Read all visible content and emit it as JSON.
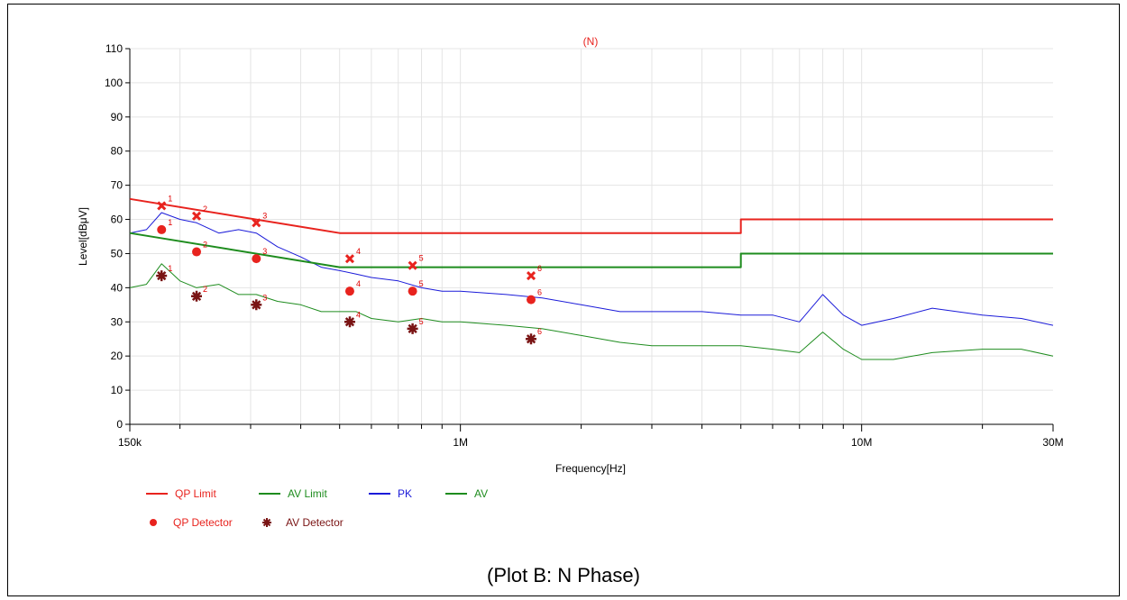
{
  "caption": "(Plot B: N Phase)",
  "chart_data": {
    "type": "line",
    "title": "(N)",
    "xlabel": "Frequency[Hz]",
    "ylabel": "Level[dBμV]",
    "x_scale": "log",
    "xlim": [
      150000,
      30000000
    ],
    "ylim": [
      0,
      110
    ],
    "grid": true,
    "y_ticks": [
      0,
      10,
      20,
      30,
      40,
      50,
      60,
      70,
      80,
      90,
      100,
      110
    ],
    "x_tick_labels": [
      {
        "value": 150000,
        "label": "150k"
      },
      {
        "value": 1000000,
        "label": "1M"
      },
      {
        "value": 10000000,
        "label": "10M"
      },
      {
        "value": 30000000,
        "label": "30M"
      }
    ],
    "x_minor_ticks": [
      200000,
      300000,
      400000,
      500000,
      600000,
      700000,
      800000,
      900000,
      2000000,
      3000000,
      4000000,
      5000000,
      6000000,
      7000000,
      8000000,
      9000000,
      20000000
    ],
    "colors": {
      "qp_limit": "#e8231e",
      "av_limit": "#1e8c1e",
      "pk": "#1b1bd9",
      "av": "#1e8c1e",
      "qp_detector": "#e8231e",
      "av_detector": "#7a1414",
      "title": "#e8231e"
    },
    "series": [
      {
        "name": "QP Limit",
        "color": "#e8231e",
        "x": [
          150000,
          500000,
          500000,
          5000000,
          5000000,
          30000000
        ],
        "y": [
          66,
          56,
          56,
          56,
          60,
          60
        ]
      },
      {
        "name": "AV Limit",
        "color": "#1e8c1e",
        "x": [
          150000,
          500000,
          500000,
          5000000,
          5000000,
          30000000
        ],
        "y": [
          56,
          46,
          46,
          46,
          50,
          50
        ]
      },
      {
        "name": "PK",
        "color": "#1b1bd9",
        "x": [
          150000,
          165000,
          180000,
          200000,
          220000,
          250000,
          280000,
          310000,
          350000,
          400000,
          450000,
          500000,
          550000,
          600000,
          700000,
          800000,
          900000,
          1000000,
          1300000,
          1600000,
          2000000,
          2500000,
          3000000,
          4000000,
          5000000,
          6000000,
          7000000,
          8000000,
          9000000,
          10000000,
          12000000,
          15000000,
          20000000,
          25000000,
          30000000
        ],
        "y": [
          56,
          57,
          62,
          60,
          59,
          56,
          57,
          56,
          52,
          49,
          46,
          45,
          44,
          43,
          42,
          40,
          39,
          39,
          38,
          37,
          35,
          33,
          33,
          33,
          32,
          32,
          30,
          38,
          32,
          29,
          31,
          34,
          32,
          31,
          29
        ]
      },
      {
        "name": "AV",
        "color": "#1e8c1e",
        "x": [
          150000,
          165000,
          180000,
          200000,
          220000,
          250000,
          280000,
          310000,
          350000,
          400000,
          450000,
          500000,
          550000,
          600000,
          700000,
          800000,
          900000,
          1000000,
          1300000,
          1600000,
          2000000,
          2500000,
          3000000,
          4000000,
          5000000,
          6000000,
          7000000,
          8000000,
          9000000,
          10000000,
          12000000,
          15000000,
          20000000,
          25000000,
          30000000
        ],
        "y": [
          40,
          41,
          47,
          42,
          40,
          41,
          38,
          38,
          36,
          35,
          33,
          33,
          33,
          31,
          30,
          31,
          30,
          30,
          29,
          28,
          26,
          24,
          23,
          23,
          23,
          22,
          21,
          27,
          22,
          19,
          19,
          21,
          22,
          22,
          20
        ]
      }
    ],
    "qp_detector": {
      "name": "QP Detector",
      "points": [
        {
          "label": "1",
          "x": 180000,
          "y": 57
        },
        {
          "label": "2",
          "x": 220000,
          "y": 50.5
        },
        {
          "label": "3",
          "x": 310000,
          "y": 48.5
        },
        {
          "label": "4",
          "x": 530000,
          "y": 39
        },
        {
          "label": "5",
          "x": 760000,
          "y": 39
        },
        {
          "label": "6",
          "x": 1500000,
          "y": 36.5
        }
      ]
    },
    "qp_peak_markers": [
      {
        "label": "1",
        "x": 180000,
        "y": 64
      },
      {
        "label": "2",
        "x": 220000,
        "y": 61
      },
      {
        "label": "3",
        "x": 310000,
        "y": 59
      },
      {
        "label": "4",
        "x": 530000,
        "y": 48.5
      },
      {
        "label": "5",
        "x": 760000,
        "y": 46.5
      },
      {
        "label": "6",
        "x": 1500000,
        "y": 43.5
      }
    ],
    "av_detector": {
      "name": "AV Detector",
      "points": [
        {
          "label": "1",
          "x": 180000,
          "y": 43.5
        },
        {
          "label": "2",
          "x": 220000,
          "y": 37.5
        },
        {
          "label": "3",
          "x": 310000,
          "y": 35
        },
        {
          "label": "4",
          "x": 530000,
          "y": 30
        },
        {
          "label": "5",
          "x": 760000,
          "y": 28
        },
        {
          "label": "6",
          "x": 1500000,
          "y": 25
        }
      ]
    },
    "legend": {
      "placement": "bottom-left",
      "items": [
        {
          "name": "QP Limit",
          "kind": "line",
          "color": "#e8231e"
        },
        {
          "name": "AV Limit",
          "kind": "line",
          "color": "#1e8c1e"
        },
        {
          "name": "PK",
          "kind": "line",
          "color": "#1b1bd9"
        },
        {
          "name": "AV",
          "kind": "line",
          "color": "#1e8c1e"
        },
        {
          "name": "QP Detector",
          "kind": "dot",
          "color": "#e8231e"
        },
        {
          "name": "AV Detector",
          "kind": "star",
          "color": "#7a1414"
        }
      ]
    }
  }
}
